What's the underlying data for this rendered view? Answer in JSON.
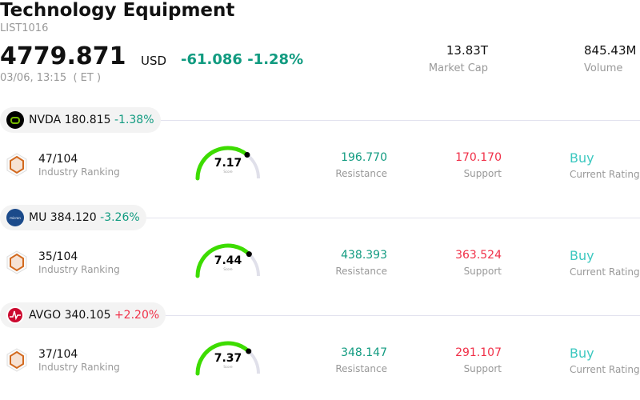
{
  "header": {
    "title": "Technology Equipment",
    "code": "LIST1016",
    "price": "4779.871",
    "currency": "USD",
    "change": "-61.086 -1.28%",
    "time": "03/06, 13:15  ( ET )",
    "market_cap": {
      "value": "13.83T",
      "label": "Market Cap"
    },
    "volume": {
      "value": "845.43M",
      "label": "Volume"
    }
  },
  "colors": {
    "up": "#f03048",
    "down": "#119b80",
    "gauge": "#3ddc00",
    "rating": "#3cc8c0"
  },
  "stocks": [
    {
      "ticker": "NVDA",
      "price": "180.815",
      "change": "-1.38%",
      "direction": "down",
      "logo": "nvidia-logo",
      "rank": "47/104",
      "rank_label": "Industry Ranking",
      "score": "7.17",
      "score_value": 7.17,
      "score_label": "Score",
      "resistance": "196.770",
      "resistance_label": "Resistance",
      "support": "170.170",
      "support_label": "Support",
      "rating": "Buy",
      "rating_label": "Current Rating"
    },
    {
      "ticker": "MU",
      "price": "384.120",
      "change": "-3.26%",
      "direction": "down",
      "logo": "micron-logo",
      "rank": "35/104",
      "rank_label": "Industry Ranking",
      "score": "7.44",
      "score_value": 7.44,
      "score_label": "Score",
      "resistance": "438.393",
      "resistance_label": "Resistance",
      "support": "363.524",
      "support_label": "Support",
      "rating": "Buy",
      "rating_label": "Current Rating"
    },
    {
      "ticker": "AVGO",
      "price": "340.105",
      "change": "+2.20%",
      "direction": "up",
      "logo": "broadcom-logo",
      "rank": "37/104",
      "rank_label": "Industry Ranking",
      "score": "7.37",
      "score_value": 7.37,
      "score_label": "Score",
      "resistance": "348.147",
      "resistance_label": "Resistance",
      "support": "291.107",
      "support_label": "Support",
      "rating": "Buy",
      "rating_label": "Current Rating"
    }
  ]
}
